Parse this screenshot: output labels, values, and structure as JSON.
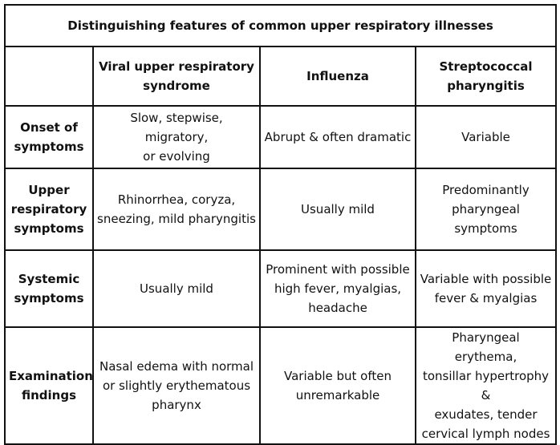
{
  "title": "Distinguishing features of common upper respiratory illnesses",
  "columns": [
    "",
    [
      "Viral upper respiratory",
      "syndrome"
    ],
    [
      "Influenza"
    ],
    [
      "Streptococcal",
      "pharyngitis"
    ]
  ],
  "rows": [
    {
      "header": [
        "Onset of",
        "symptoms"
      ],
      "cells": [
        [
          "Slow, stepwise, migratory,",
          "or evolving"
        ],
        [
          "Abrupt & often dramatic"
        ],
        [
          "Variable"
        ]
      ]
    },
    {
      "header": [
        "Upper",
        "respiratory",
        "symptoms"
      ],
      "cells": [
        [
          "Rhinorrhea, coryza,",
          "sneezing, mild pharyngitis"
        ],
        [
          "Usually mild"
        ],
        [
          "Predominantly",
          "pharyngeal symptoms"
        ]
      ]
    },
    {
      "header": [
        "Systemic",
        "symptoms"
      ],
      "cells": [
        [
          "Usually mild"
        ],
        [
          "Prominent with possible",
          "high fever, myalgias,",
          "headache"
        ],
        [
          "Variable with possible",
          "fever & myalgias"
        ]
      ]
    },
    {
      "header": [
        "Examination",
        "findings"
      ],
      "cells": [
        [
          "Nasal edema with normal",
          "or slightly erythematous",
          "pharynx"
        ],
        [
          "Variable but often",
          "unremarkable"
        ],
        [
          "Pharyngeal erythema,",
          "tonsillar hypertrophy &",
          "exudates, tender",
          "cervical lymph nodes"
        ]
      ]
    }
  ]
}
